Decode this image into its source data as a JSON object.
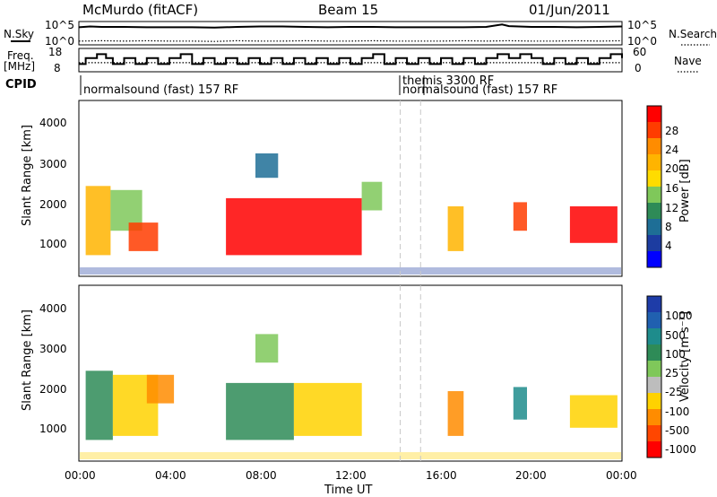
{
  "header": {
    "station": "McMurdo (fitACF)",
    "beam": "Beam 15",
    "date": "01/Jun/2011"
  },
  "status_panel": {
    "left_label_sky": "N.Sky",
    "left_ticks": [
      "10^5",
      "10^0"
    ],
    "right_label_search": "N.Search",
    "right_ticks": [
      "10^5",
      "10^0"
    ]
  },
  "freq_panel": {
    "left_label_line1": "Freq.",
    "left_label_line2": "[MHz]",
    "left_ticks": [
      "18",
      "8"
    ],
    "right_ticks": [
      "60",
      "0"
    ],
    "right_label": "Nave"
  },
  "cpid": {
    "label": "CPID",
    "segments": [
      {
        "text": "normalsound (fast) 157 RF",
        "start_hour": 0.0
      },
      {
        "text": "themis 3300 RF",
        "start_hour": 14.2
      },
      {
        "text": "normalsound (fast) 157 RF",
        "start_hour": 15.1
      }
    ]
  },
  "power_colorbar": {
    "label": "Power [dB]",
    "ticks": [
      "28",
      "24",
      "20",
      "16",
      "12",
      "8",
      "4"
    ],
    "colors": [
      "#ff0000",
      "#ff3c00",
      "#ff8c00",
      "#ffb400",
      "#ffdc00",
      "#7fc85a",
      "#2e8b57",
      "#1e6e96",
      "#1c3ca0",
      "#0000ff"
    ]
  },
  "velocity_colorbar": {
    "label": "Velocity [m s⁻¹]",
    "ticks": [
      "1000",
      "500",
      "100",
      "25",
      "-25",
      "-100",
      "-500",
      "-1000"
    ],
    "colors": [
      "#1e3ca8",
      "#2060b0",
      "#1e8c8c",
      "#2e8b57",
      "#7fc85a",
      "#bdbdbd",
      "#ffd200",
      "#ff8c00",
      "#ff4600",
      "#ff0000"
    ]
  },
  "chart_data": [
    {
      "type": "line",
      "title": "",
      "x_unit": "hour UT",
      "series": [
        {
          "name": "N.Sky",
          "x": [
            0,
            0.5,
            1,
            2,
            3,
            4,
            5,
            6,
            7,
            8,
            9,
            10,
            11,
            12,
            13,
            14,
            15,
            16,
            17,
            18,
            18.7,
            19,
            20,
            21,
            22,
            23,
            24
          ],
          "values": [
            4,
            4.2,
            4.1,
            4.1,
            4.0,
            4.0,
            4.0,
            3.9,
            4.1,
            4.2,
            4.2,
            4.1,
            4.0,
            4.1,
            4.1,
            4.0,
            4.0,
            4.0,
            4.0,
            4.1,
            4.7,
            4.3,
            4.1,
            4.1,
            4.0,
            4.1,
            4.2
          ]
        },
        {
          "name": "N.Search",
          "x": [
            0,
            1,
            2,
            3,
            4,
            5,
            6,
            7,
            8,
            9,
            10,
            11,
            12,
            13,
            14,
            15,
            16,
            17,
            18,
            19,
            20,
            21,
            22,
            23,
            24
          ],
          "values": [
            0.5,
            0.6,
            0.5,
            0.6,
            0.5,
            0.5,
            0.4,
            0.6,
            0.5,
            0.5,
            0.6,
            0.5,
            0.5,
            0.6,
            0.5,
            0.5,
            0.5,
            0.6,
            0.5,
            0.6,
            0.5,
            0.5,
            0.6,
            0.5,
            0.6
          ]
        }
      ]
    },
    {
      "type": "line",
      "title": "",
      "xlabel": "",
      "ylabel": "Freq. [MHz]",
      "ylim": [
        8,
        18
      ],
      "series": [
        {
          "name": "Freq.",
          "x": [
            0,
            0.3,
            0.8,
            1.2,
            1.5,
            2.0,
            2.5,
            3.0,
            3.5,
            4.0,
            4.5,
            5.0,
            5.5,
            6.0,
            6.5,
            7.0,
            7.5,
            8.0,
            8.5,
            9.0,
            9.5,
            10.0,
            10.5,
            11.0,
            11.5,
            12.0,
            12.5,
            13.0,
            13.5,
            14.0,
            14.5,
            15.0,
            15.5,
            16.0,
            16.5,
            17.0,
            17.5,
            18.0,
            18.5,
            19.0,
            19.5,
            20.0,
            20.5,
            21.0,
            21.5,
            22.0,
            22.5,
            23.0,
            23.5,
            24.0
          ],
          "values": [
            11,
            14,
            16,
            14,
            11,
            14,
            11,
            14,
            11,
            14,
            16,
            11,
            14,
            11,
            14,
            11,
            14,
            11,
            14,
            11,
            14,
            11,
            14,
            11,
            14,
            11,
            14,
            16,
            11,
            14,
            11,
            14,
            11,
            14,
            11,
            14,
            11,
            14,
            16,
            14,
            16,
            14,
            11,
            14,
            11,
            14,
            11,
            14,
            16,
            14
          ]
        },
        {
          "name": "Nave",
          "x": [
            0,
            2,
            4,
            6,
            8,
            10,
            12,
            14,
            16,
            18,
            20,
            22,
            24
          ],
          "values": [
            22,
            22,
            22,
            22,
            22,
            22,
            22,
            22,
            22,
            22,
            22,
            22,
            22
          ]
        }
      ]
    },
    {
      "type": "heatmap",
      "title": "",
      "xlabel": "Time UT",
      "ylabel": "Slant Range [km]",
      "xlim": [
        0,
        24
      ],
      "ylim": [
        180,
        4500
      ],
      "x_ticks": [
        "00:00",
        "04:00",
        "08:00",
        "12:00",
        "16:00",
        "20:00",
        "00:00"
      ],
      "y_ticks": [
        "1000",
        "2000",
        "3000",
        "4000"
      ],
      "colorbar": "Power [dB]",
      "regions": [
        {
          "t0": 0.3,
          "t1": 1.4,
          "r0": 700,
          "r1": 2400,
          "level": 20
        },
        {
          "t0": 1.4,
          "t1": 2.8,
          "r0": 1300,
          "r1": 2300,
          "level": 12
        },
        {
          "t0": 2.2,
          "t1": 3.5,
          "r0": 800,
          "r1": 1500,
          "level": 24
        },
        {
          "t0": 6.5,
          "t1": 12.5,
          "r0": 700,
          "r1": 2100,
          "level": 28
        },
        {
          "t0": 7.8,
          "t1": 8.8,
          "r0": 2600,
          "r1": 3200,
          "level": 8
        },
        {
          "t0": 12.5,
          "t1": 13.4,
          "r0": 1800,
          "r1": 2500,
          "level": 12
        },
        {
          "t0": 16.3,
          "t1": 17.0,
          "r0": 800,
          "r1": 1900,
          "level": 20
        },
        {
          "t0": 19.2,
          "t1": 19.8,
          "r0": 1300,
          "r1": 2000,
          "level": 24
        },
        {
          "t0": 21.7,
          "t1": 23.8,
          "r0": 1000,
          "r1": 1900,
          "level": 28
        }
      ]
    },
    {
      "type": "heatmap",
      "title": "",
      "xlabel": "Time UT",
      "ylabel": "Slant Range [km]",
      "xlim": [
        0,
        24
      ],
      "ylim": [
        180,
        4500
      ],
      "x_ticks": [
        "00:00",
        "04:00",
        "08:00",
        "12:00",
        "16:00",
        "20:00",
        "00:00"
      ],
      "y_ticks": [
        "1000",
        "2000",
        "3000",
        "4000"
      ],
      "colorbar": "Velocity [m s⁻¹]",
      "regions": [
        {
          "t0": 0.3,
          "t1": 1.5,
          "r0": 700,
          "r1": 2400,
          "level": 100
        },
        {
          "t0": 1.5,
          "t1": 3.5,
          "r0": 800,
          "r1": 2300,
          "level": -100
        },
        {
          "t0": 3.0,
          "t1": 4.2,
          "r0": 1600,
          "r1": 2300,
          "level": -500
        },
        {
          "t0": 6.5,
          "t1": 9.5,
          "r0": 700,
          "r1": 2100,
          "level": 100
        },
        {
          "t0": 9.5,
          "t1": 12.5,
          "r0": 800,
          "r1": 2100,
          "level": -100
        },
        {
          "t0": 7.8,
          "t1": 8.8,
          "r0": 2600,
          "r1": 3300,
          "level": 25
        },
        {
          "t0": 16.3,
          "t1": 17.0,
          "r0": 800,
          "r1": 1900,
          "level": -500
        },
        {
          "t0": 19.2,
          "t1": 19.8,
          "r0": 1200,
          "r1": 2000,
          "level": 500
        },
        {
          "t0": 21.7,
          "t1": 23.8,
          "r0": 1000,
          "r1": 1800,
          "level": -100
        }
      ]
    }
  ]
}
